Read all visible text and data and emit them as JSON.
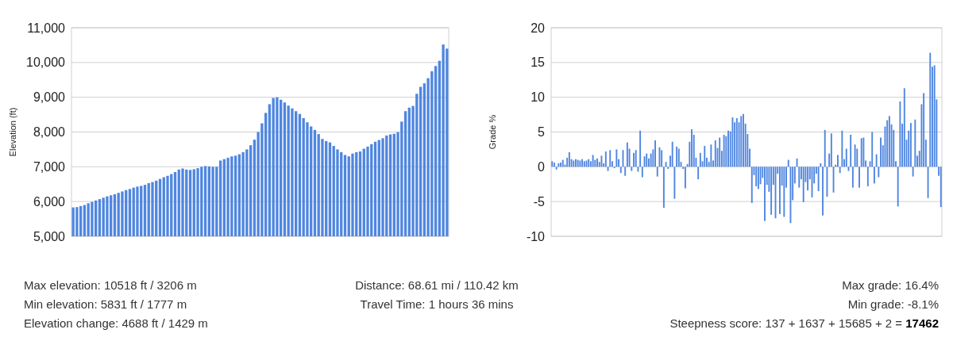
{
  "chart_data": [
    {
      "type": "bar",
      "ylabel": "Elevation (ft)",
      "color": "#4f86e0",
      "ylim": [
        5000,
        11000
      ],
      "yticks": [
        {
          "value": 5000,
          "label": "5,000"
        },
        {
          "value": 6000,
          "label": "6,000"
        },
        {
          "value": 7000,
          "label": "7,000"
        },
        {
          "value": 8000,
          "label": "8,000"
        },
        {
          "value": 9000,
          "label": "9,000"
        },
        {
          "value": 10000,
          "label": "10,000"
        },
        {
          "value": 11000,
          "label": "11,000"
        }
      ],
      "grid": true,
      "tick_labels": "y",
      "categories": [
        null,
        null,
        null,
        null,
        null,
        null,
        null,
        null,
        null,
        null,
        null,
        null,
        null,
        null,
        null,
        null,
        null,
        null,
        null,
        null,
        null,
        null,
        null,
        null,
        null,
        null,
        null,
        null,
        null,
        null,
        null,
        null,
        null,
        null,
        null,
        null,
        null,
        null,
        null,
        null,
        null,
        null,
        null,
        null,
        null,
        null,
        null,
        null,
        null,
        null,
        null,
        null,
        null,
        null,
        null,
        null,
        null,
        null,
        null,
        null,
        null,
        null,
        null,
        null,
        null,
        null,
        null,
        null,
        null,
        null,
        null,
        null,
        null,
        null,
        null,
        null,
        null,
        null,
        null,
        null,
        null,
        null,
        null,
        null,
        null,
        null,
        null,
        null,
        null,
        null,
        null,
        null,
        null,
        null,
        null,
        null,
        null,
        null,
        null,
        null
      ],
      "values": [
        5831,
        5840,
        5870,
        5900,
        5950,
        5990,
        6030,
        6070,
        6110,
        6150,
        6180,
        6210,
        6250,
        6290,
        6330,
        6360,
        6400,
        6430,
        6450,
        6480,
        6530,
        6560,
        6600,
        6650,
        6700,
        6740,
        6790,
        6850,
        6920,
        6950,
        6920,
        6910,
        6930,
        6960,
        7000,
        7020,
        7010,
        7000,
        7000,
        7180,
        7220,
        7260,
        7300,
        7320,
        7360,
        7420,
        7500,
        7620,
        7780,
        8000,
        8250,
        8550,
        8800,
        8980,
        9000,
        8930,
        8850,
        8760,
        8680,
        8600,
        8520,
        8400,
        8280,
        8160,
        8060,
        7940,
        7800,
        7740,
        7700,
        7600,
        7500,
        7420,
        7340,
        7300,
        7380,
        7420,
        7440,
        7520,
        7580,
        7650,
        7720,
        7770,
        7820,
        7900,
        7930,
        7950,
        8000,
        8300,
        8600,
        8700,
        8750,
        9100,
        9300,
        9400,
        9550,
        9750,
        9900,
        10050,
        10518,
        10400
      ]
    },
    {
      "type": "bar",
      "ylabel": "Grade %",
      "color": "#4f86e0",
      "ylim": [
        -10,
        20
      ],
      "yticks": [
        -10,
        -5,
        0,
        5,
        10,
        15,
        20
      ],
      "grid": true,
      "tick_labels": "y",
      "categories": [
        null,
        null,
        null,
        null,
        null,
        null,
        null,
        null,
        null,
        null,
        null,
        null,
        null,
        null,
        null,
        null,
        null,
        null,
        null,
        null,
        null,
        null,
        null,
        null,
        null,
        null,
        null,
        null,
        null,
        null,
        null,
        null,
        null,
        null,
        null,
        null,
        null,
        null,
        null,
        null,
        null,
        null,
        null,
        null,
        null,
        null,
        null,
        null,
        null,
        null,
        null,
        null,
        null,
        null,
        null,
        null,
        null,
        null,
        null,
        null,
        null,
        null,
        null,
        null,
        null,
        null,
        null,
        null,
        null,
        null,
        null,
        null,
        null,
        null,
        null,
        null,
        null,
        null,
        null,
        null,
        null,
        null,
        null,
        null,
        null,
        null,
        null,
        null,
        null,
        null,
        null,
        null,
        null,
        null,
        null,
        null,
        null,
        null,
        null,
        null,
        null,
        null,
        null,
        null,
        null,
        null,
        null,
        null,
        null,
        null,
        null,
        null,
        null,
        null,
        null,
        null,
        null,
        null,
        null,
        null,
        null,
        null,
        null,
        null,
        null,
        null,
        null,
        null,
        null,
        null,
        null,
        null,
        null,
        null,
        null,
        null,
        null,
        null,
        null,
        null,
        null,
        null,
        null,
        null,
        null,
        null,
        null,
        null,
        null,
        null,
        null,
        null,
        null,
        null,
        null,
        null,
        null,
        null,
        null,
        null,
        null,
        null,
        null,
        null,
        null,
        null,
        null,
        null,
        null,
        null,
        null,
        null,
        null,
        null,
        null,
        null,
        null,
        null,
        null,
        null,
        null,
        null
      ],
      "values": [
        0.8,
        0.6,
        -0.4,
        0.5,
        0.6,
        1,
        0.3,
        1.3,
        2.1,
        1.1,
        0.9,
        1.1,
        1,
        0.9,
        1.1,
        0.8,
        0.9,
        1.1,
        0.8,
        1.7,
        1,
        1.2,
        0.7,
        1.6,
        0.5,
        2.2,
        -0.6,
        2.4,
        0.8,
        -0.2,
        2.5,
        1.1,
        -0.9,
        2.4,
        -1.3,
        3.5,
        2.6,
        -0.6,
        2,
        2.4,
        -0.7,
        5.2,
        -1.5,
        1.5,
        1.9,
        1.2,
        1.9,
        2.5,
        3.8,
        -1.4,
        2.8,
        2.4,
        -5.9,
        0.7,
        -0.3,
        1.6,
        3.6,
        -4.6,
        2.9,
        2.6,
        0.7,
        -0.3,
        -3.1,
        0.4,
        3.6,
        5.4,
        4.6,
        1.3,
        -1.8,
        2,
        0.8,
        3,
        1.3,
        0.7,
        3.2,
        0.9,
        3.8,
        2.7,
        4.2,
        2.3,
        4.6,
        4.4,
        5.2,
        5.1,
        7.1,
        6.4,
        7,
        6.4,
        7.3,
        7.6,
        6.2,
        4.7,
        2.6,
        -5.2,
        -1.2,
        -2.8,
        -3.2,
        -2.5,
        -1.6,
        -7.8,
        -2.6,
        -3.6,
        -6.9,
        -2.6,
        -7.4,
        -1,
        -6.8,
        -2.7,
        -7.2,
        -3,
        1,
        -8.1,
        -4.8,
        -2.4,
        1.2,
        -3,
        -1.8,
        -5.1,
        -2.2,
        -3.4,
        -1.8,
        -4.4,
        -2.4,
        -1,
        -3.5,
        0.5,
        -7,
        5.3,
        -4.3,
        1.9,
        4.8,
        -3.7,
        0.3,
        1.7,
        -0.9,
        5.2,
        1.1,
        2.6,
        -0.6,
        4.6,
        -3,
        3.2,
        2.6,
        -3,
        4.1,
        4.2,
        0.9,
        -2.8,
        0.8,
        5,
        -2.4,
        1.8,
        -1.5,
        4.2,
        3.1,
        5.8,
        6.7,
        7.3,
        6.1,
        5.3,
        0.8,
        -5.7,
        9.4,
        6.2,
        11.3,
        3.9,
        5.2,
        6.3,
        -1.4,
        6.8,
        1.6,
        2.3,
        9,
        10.6,
        3.9,
        -4.5,
        16.4,
        14.4,
        14.6,
        9.7,
        -1.3,
        -5.8
      ]
    },
    {
      "type": "other",
      "annotations": [
        "Max elevation: 10518 ft / 3206 m",
        "Min elevation: 5831 ft / 1777 m",
        "Elevation change: 4688 ft / 1429 m",
        "Distance: 68.61 mi / 110.42 km",
        "Travel Time: 1 hours 36 mins",
        "Max grade: 16.4%",
        "Min grade: -8.1%",
        "Steepness score: 137 + 1637 + 15685 + 2 = 17462"
      ]
    }
  ]
}
